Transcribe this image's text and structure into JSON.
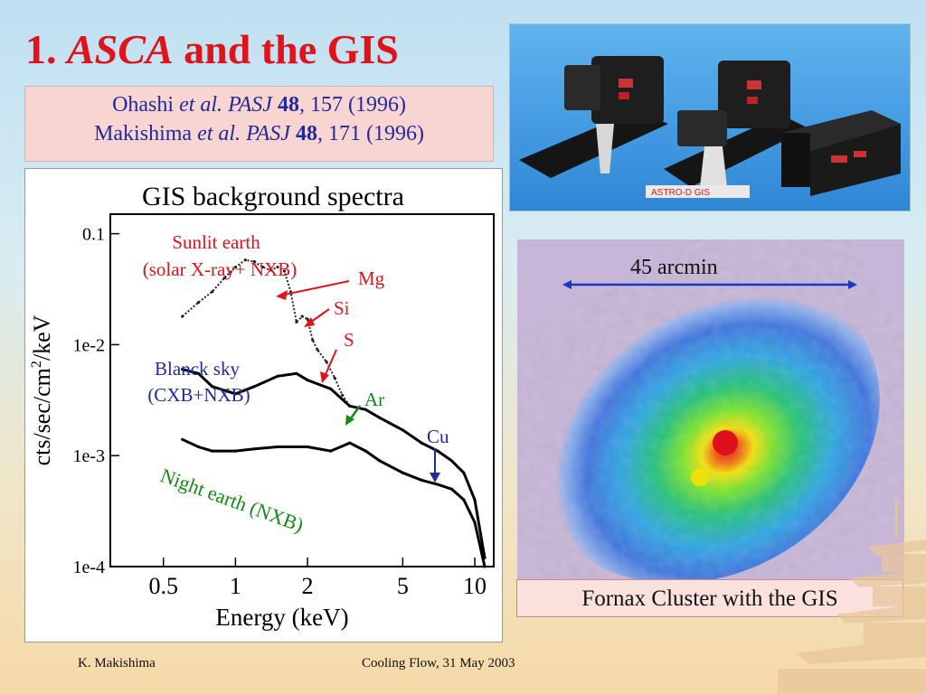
{
  "slide": {
    "title_prefix": "1.",
    "title_italic": "ASCA",
    "title_suffix": "and the GIS",
    "references": [
      {
        "author": "Ohashi",
        "etal": "et al.",
        "journal": "PASJ",
        "volume": "48",
        "rest": ", 157 (1996)"
      },
      {
        "author": "Makishima",
        "etal": "et al.",
        "journal": "PASJ",
        "volume": "48",
        "rest": ", 171 (1996)"
      }
    ],
    "photo_label": "ASTRO-D GIS",
    "footer_left": "K. Makishima",
    "footer_center": "Cooling Flow, 31 May 2003"
  },
  "chart_data": {
    "type": "line",
    "title": "GIS background spectra",
    "xlabel": "Energy (keV)",
    "ylabel_parts": [
      "cts/sec/cm",
      "2",
      "/keV"
    ],
    "xscale": "log",
    "yscale": "log",
    "xlim": [
      0.3,
      12
    ],
    "ylim": [
      0.0001,
      0.15
    ],
    "xticks": [
      {
        "v": 0.5,
        "label": "0.5"
      },
      {
        "v": 1,
        "label": "1"
      },
      {
        "v": 2,
        "label": "2"
      },
      {
        "v": 5,
        "label": "5"
      },
      {
        "v": 10,
        "label": "10"
      }
    ],
    "yticks": [
      {
        "v": 0.1,
        "label": "0.1"
      },
      {
        "v": 0.01,
        "label": "1e-2"
      },
      {
        "v": 0.001,
        "label": "1e-3"
      },
      {
        "v": 0.0001,
        "label": "1e-4"
      }
    ],
    "series": [
      {
        "name": "Sunlit earth (solar X-ray+ NXB)",
        "color": "#222",
        "x": [
          0.6,
          0.7,
          0.8,
          0.9,
          1.0,
          1.1,
          1.2,
          1.3,
          1.4,
          1.5,
          1.6,
          1.7,
          1.8,
          1.9,
          2.0,
          2.1,
          2.2,
          2.4,
          2.6,
          2.8,
          3.0
        ],
        "y": [
          0.018,
          0.024,
          0.03,
          0.04,
          0.05,
          0.058,
          0.056,
          0.05,
          0.047,
          0.05,
          0.046,
          0.03,
          0.016,
          0.018,
          0.017,
          0.011,
          0.009,
          0.007,
          0.005,
          0.0035,
          0.0028
        ]
      },
      {
        "name": "Blanck sky (CXB+NXB)",
        "color": "#000",
        "x": [
          0.6,
          0.7,
          0.8,
          1.0,
          1.2,
          1.5,
          1.8,
          2.0,
          2.5,
          3.0,
          3.5,
          4.0,
          5.0,
          6.0,
          7.0,
          8.0,
          9.0,
          10.0,
          11.0
        ],
        "y": [
          0.006,
          0.0055,
          0.0042,
          0.0036,
          0.0042,
          0.0052,
          0.0055,
          0.0048,
          0.004,
          0.0028,
          0.0026,
          0.0022,
          0.0017,
          0.0013,
          0.0011,
          0.0009,
          0.0007,
          0.0004,
          0.00012
        ]
      },
      {
        "name": "Night earth (NXB)",
        "color": "#000",
        "x": [
          0.6,
          0.7,
          0.8,
          1.0,
          1.2,
          1.5,
          2.0,
          2.5,
          3.0,
          3.5,
          4.0,
          5.0,
          6.0,
          7.0,
          8.0,
          9.0,
          10.0,
          11.0
        ],
        "y": [
          0.0014,
          0.0012,
          0.0011,
          0.0011,
          0.00115,
          0.0012,
          0.0012,
          0.0011,
          0.0013,
          0.0011,
          0.0009,
          0.0007,
          0.0006,
          0.00055,
          0.0005,
          0.0004,
          0.00025,
          0.0001
        ]
      }
    ],
    "annotations": [
      {
        "text": "Sunlit earth",
        "color": "#e0121a"
      },
      {
        "text": "(solar X-ray+ NXB)",
        "color": "#e0121a"
      },
      {
        "text": "Mg",
        "color": "#e0121a"
      },
      {
        "text": "Si",
        "color": "#e0121a"
      },
      {
        "text": "S",
        "color": "#e0121a"
      },
      {
        "text": "Blanck sky",
        "color": "#1f2a9c"
      },
      {
        "text": "(CXB+NXB)",
        "color": "#1f2a9c"
      },
      {
        "text": "Ar",
        "color": "#128a12"
      },
      {
        "text": "Cu",
        "color": "#1f2a9c"
      },
      {
        "text": "Night earth (NXB)",
        "color": "#128a12"
      }
    ]
  },
  "fornax": {
    "scale_label": "45 arcmin",
    "caption": "Fornax Cluster with the GIS"
  },
  "colors": {
    "title_red": "#e0121a",
    "ref_blue": "#1f2a9c",
    "ref_box": "#f9d5d2",
    "green": "#128a12"
  }
}
